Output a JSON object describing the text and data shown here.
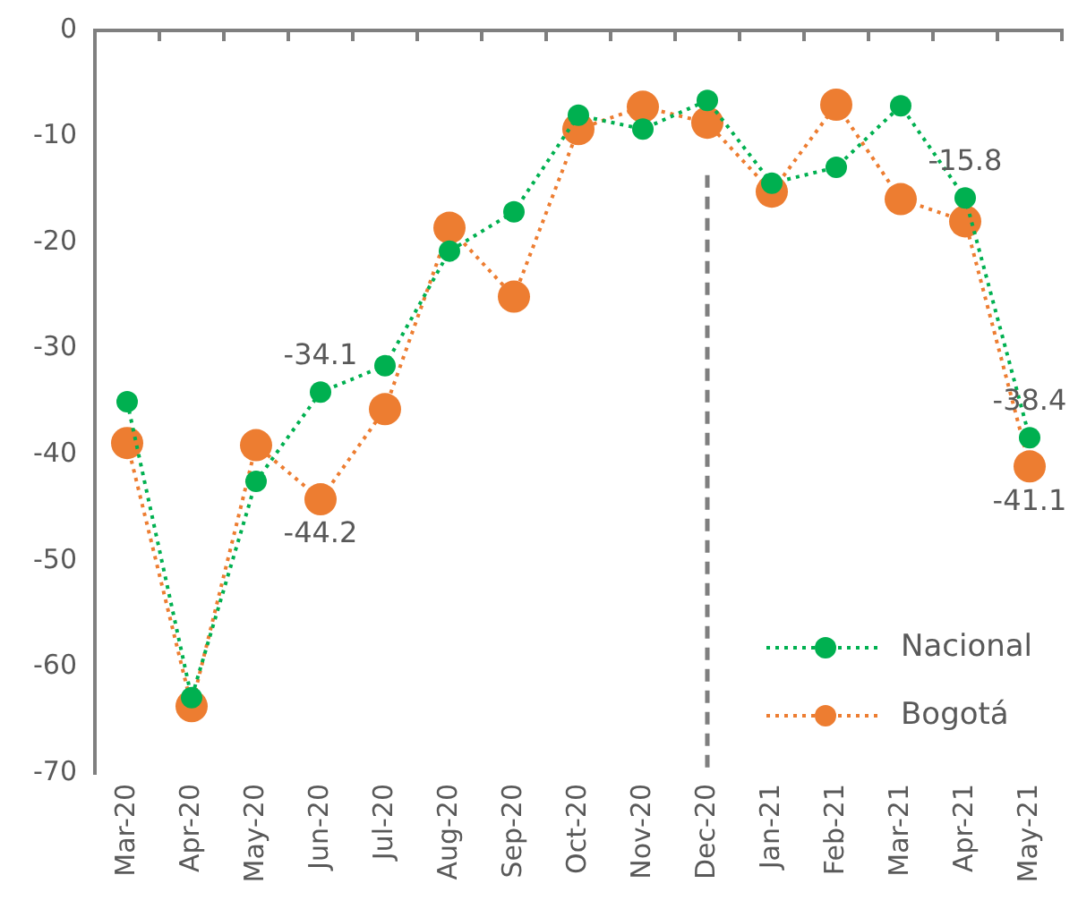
{
  "chart_data": {
    "type": "line",
    "categories": [
      "Mar-20",
      "Apr-20",
      "May-20",
      "Jun-20",
      "Jul-20",
      "Aug-20",
      "Sep-20",
      "Oct-20",
      "Nov-20",
      "Dec-20",
      "Jan-21",
      "Feb-21",
      "Mar-21",
      "Apr-21",
      "May-21"
    ],
    "series": [
      {
        "name": "Nacional",
        "color": "#00b050",
        "values": [
          -35.0,
          -62.9,
          -42.5,
          -34.1,
          -31.6,
          -20.8,
          -17.1,
          -8.0,
          -9.3,
          -6.6,
          -14.4,
          -12.9,
          -7.1,
          -15.8,
          -38.4
        ],
        "value_labels": [
          null,
          null,
          null,
          "-34.1",
          null,
          null,
          null,
          null,
          null,
          null,
          null,
          null,
          null,
          "-15.8",
          "-38.4"
        ]
      },
      {
        "name": "Bogotá",
        "color": "#ed7d31",
        "values": [
          -38.9,
          -63.7,
          -39.1,
          -44.2,
          -35.7,
          -18.6,
          -25.1,
          -9.3,
          -7.2,
          -8.7,
          -15.2,
          -7.0,
          -15.9,
          -18.0,
          -41.1
        ],
        "value_labels": [
          null,
          null,
          null,
          "-44.2",
          null,
          null,
          null,
          null,
          null,
          null,
          null,
          null,
          null,
          null,
          "-41.1"
        ]
      }
    ],
    "ylim": [
      -70,
      0
    ],
    "yticks": [
      -70,
      -60,
      -50,
      -40,
      -30,
      -20,
      -10,
      0
    ],
    "grid": false,
    "legend": "bottom right",
    "marker": "circle",
    "line_style": "dotted",
    "ref_lines": [
      {
        "axis": "x",
        "value": "Dec-20",
        "color": "#7f7f7f",
        "line_style": "dashed"
      }
    ]
  }
}
